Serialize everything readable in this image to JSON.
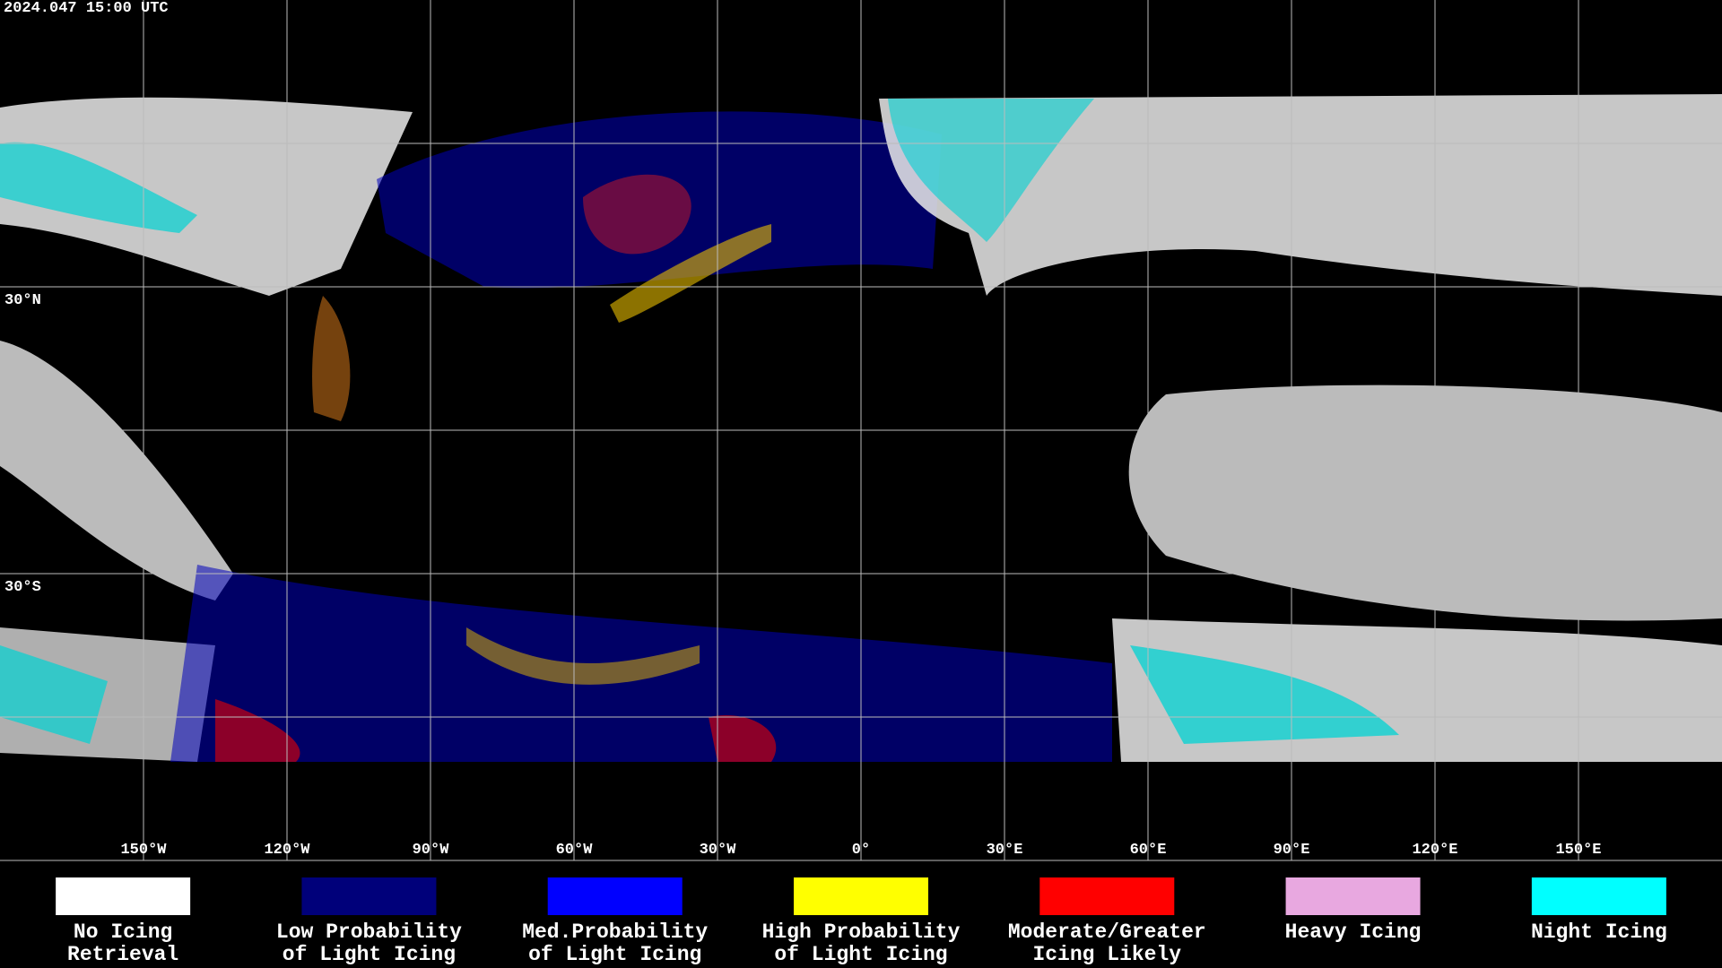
{
  "header": {
    "timestamp": "2024.047 15:00 UTC"
  },
  "map": {
    "lon_grid": [
      {
        "value": -150,
        "label": "150°W"
      },
      {
        "value": -120,
        "label": "120°W"
      },
      {
        "value": -90,
        "label": "90°W"
      },
      {
        "value": -60,
        "label": "60°W"
      },
      {
        "value": -30,
        "label": "30°W"
      },
      {
        "value": 0,
        "label": "0°"
      },
      {
        "value": 30,
        "label": "30°E"
      },
      {
        "value": 60,
        "label": "60°E"
      },
      {
        "value": 90,
        "label": "90°E"
      },
      {
        "value": 120,
        "label": "120°E"
      },
      {
        "value": 150,
        "label": "150°E"
      }
    ],
    "lat_grid": [
      {
        "value": 60,
        "label": null
      },
      {
        "value": 30,
        "label": "30°N"
      },
      {
        "value": 0,
        "label": null
      },
      {
        "value": -30,
        "label": "30°S"
      },
      {
        "value": -60,
        "label": null
      }
    ]
  },
  "legend": [
    {
      "lines": [
        "No Icing",
        "Retrieval"
      ],
      "color": "#ffffff"
    },
    {
      "lines": [
        "Low Probability",
        "of Light Icing"
      ],
      "color": "#00007a"
    },
    {
      "lines": [
        "Med.Probability",
        "of Light Icing"
      ],
      "color": "#0000ff"
    },
    {
      "lines": [
        "High Probability",
        "of Light Icing"
      ],
      "color": "#ffff00"
    },
    {
      "lines": [
        "Moderate/Greater",
        "Icing Likely"
      ],
      "color": "#ff0000"
    },
    {
      "lines": [
        "Heavy Icing"
      ],
      "color": "#e8a8e0"
    },
    {
      "lines": [
        "Night Icing"
      ],
      "color": "#00ffff"
    }
  ]
}
